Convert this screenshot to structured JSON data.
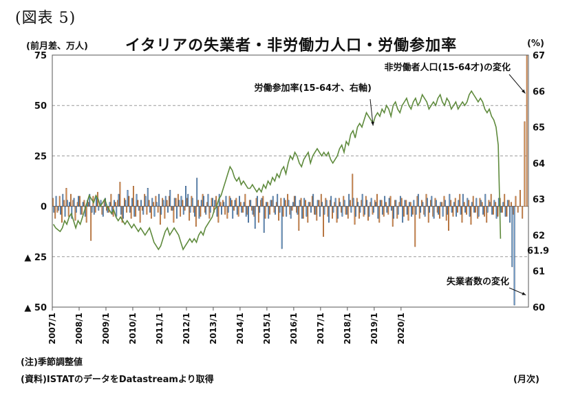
{
  "figure_label": "(図表 5)",
  "title": "イタリアの失業者・非労働力人口・労働参加率",
  "left_unit": "(前月差、万人)",
  "right_unit": "(%)",
  "x_unit": "(月次)",
  "note1": "(注)季節調整値",
  "note2": "(資料)ISTATのデータをDatastreamより取得",
  "chart_data": {
    "type": "bar+line",
    "x_start": "2007/1",
    "x_end": "2020/4",
    "x_ticks": [
      "2007/1",
      "2008/1",
      "2009/1",
      "2010/1",
      "2011/1",
      "2012/1",
      "2013/1",
      "2014/1",
      "2015/1",
      "2016/1",
      "2017/1",
      "2018/1",
      "2019/1",
      "2020/1"
    ],
    "y_left": {
      "min": -50,
      "max": 75,
      "ticks": [
        75,
        50,
        25,
        0,
        -25,
        -50
      ],
      "tick_labels": [
        "75",
        "50",
        "25",
        "0",
        "▲ 25",
        "▲ 50"
      ]
    },
    "y_right": {
      "min": 60,
      "max": 67,
      "ticks": [
        67,
        66,
        65,
        64,
        63,
        62,
        61,
        60
      ],
      "tick_labels": [
        "67",
        "66",
        "65",
        "64",
        "63",
        "62",
        "61",
        "60"
      ]
    },
    "grid": "horizontal dashed",
    "colors": {
      "inactive": "#e39a5c",
      "inactive_edge": "#8a4a1a",
      "unemployed": "#7aaede",
      "unemployed_edge": "#1f3f66",
      "participation": "#5e8a3c"
    },
    "series": [
      {
        "name": "非労働者人口(15-64才)の変化",
        "axis": "left",
        "kind": "bar",
        "values": [
          4,
          -6,
          -3,
          5,
          -8,
          3,
          9,
          -5,
          6,
          3,
          -7,
          2,
          5,
          -4,
          3,
          -8,
          2,
          -17,
          5,
          -3,
          7,
          1,
          -4,
          3,
          -2,
          -3,
          6,
          -5,
          2,
          3,
          12,
          -8,
          4,
          -3,
          5,
          -6,
          10,
          -5,
          3,
          -8,
          -2,
          6,
          -4,
          3,
          -6,
          2,
          5,
          -3,
          -9,
          4,
          -6,
          3,
          5,
          -2,
          -8,
          4,
          6,
          -5,
          3,
          -2,
          4,
          -7,
          5,
          -3,
          -10,
          3,
          -5,
          6,
          -3,
          2,
          -6,
          4,
          -3,
          5,
          -8,
          2,
          3,
          -4,
          -6,
          5,
          3,
          -2,
          4,
          -5,
          2,
          -3,
          6,
          -4,
          3,
          -2,
          -5,
          4,
          -8,
          3,
          5,
          -6,
          2,
          -4,
          3,
          -3,
          2,
          -7,
          4,
          -5,
          3,
          6,
          -4,
          -2,
          5,
          -3,
          -12,
          4,
          -6,
          3,
          -8,
          2,
          5,
          -4,
          -7,
          3,
          6,
          -15,
          4,
          -5,
          3,
          -6,
          2,
          -8,
          4,
          -3,
          5,
          -4,
          -6,
          3,
          16,
          -9,
          4,
          -6,
          3,
          -5,
          5,
          -7,
          2,
          -4,
          3,
          6,
          -8,
          3,
          -5,
          2,
          -4,
          5,
          -10,
          3,
          -6,
          2,
          4,
          -5,
          3,
          -7,
          2,
          -4,
          -20,
          5,
          -6,
          3,
          -4,
          6,
          -8,
          3,
          -5,
          4,
          -3,
          -6,
          2,
          5,
          -7,
          -12,
          3,
          -5,
          4,
          -3,
          6,
          -8,
          2,
          -4,
          3,
          -9,
          5,
          -3,
          -6,
          4,
          2,
          -5,
          -8,
          3,
          6,
          -4,
          2,
          -5,
          4,
          -3,
          6,
          -5,
          3,
          2,
          -4,
          5,
          -3,
          8,
          -6,
          42,
          75
        ]
      },
      {
        "name": "失業者数の変化",
        "axis": "left",
        "kind": "bar",
        "values": [
          -3,
          5,
          -2,
          -4,
          6,
          -5,
          3,
          2,
          -6,
          4,
          -3,
          5,
          -4,
          2,
          -5,
          3,
          6,
          -3,
          -4,
          5,
          -2,
          3,
          -5,
          4,
          -3,
          2,
          -4,
          3,
          -5,
          6,
          -4,
          -6,
          3,
          8,
          -3,
          4,
          -5,
          6,
          -2,
          3,
          -4,
          5,
          9,
          -3,
          4,
          -5,
          2,
          6,
          -4,
          3,
          5,
          -3,
          8,
          -2,
          4,
          -6,
          3,
          5,
          -4,
          10,
          6,
          -3,
          4,
          -5,
          14,
          -6,
          3,
          5,
          -4,
          6,
          -3,
          4,
          3,
          -5,
          6,
          -4,
          2,
          5,
          -3,
          4,
          -6,
          3,
          -4,
          5,
          -3,
          2,
          -5,
          -8,
          3,
          -4,
          -11,
          5,
          -3,
          4,
          -13,
          2,
          -6,
          3,
          5,
          -4,
          6,
          -3,
          -21,
          4,
          -5,
          3,
          -6,
          2,
          5,
          -4,
          3,
          -6,
          4,
          -5,
          2,
          -3,
          6,
          -4,
          3,
          -5,
          2,
          -4,
          3,
          -8,
          5,
          -3,
          4,
          -6,
          2,
          -5,
          3,
          -4,
          6,
          -3,
          4,
          -5,
          2,
          -3,
          6,
          -4,
          3,
          -5,
          4,
          -3,
          2,
          -6,
          3,
          -4,
          5,
          -3,
          4,
          -2,
          -6,
          3,
          -4,
          5,
          -8,
          3,
          -4,
          2,
          -5,
          3,
          -4,
          6,
          -3,
          2,
          -5,
          4,
          -3,
          5,
          -6,
          3,
          -4,
          2,
          -5,
          3,
          -4,
          6,
          -3,
          2,
          -5,
          3,
          -4,
          6,
          -3,
          4,
          -5,
          2,
          -3,
          4,
          -5,
          3,
          -4,
          6,
          -3,
          2,
          -4,
          3,
          -6,
          4,
          -3,
          2,
          -5,
          3,
          -8,
          -30,
          -49
        ]
      },
      {
        "name": "労働参加率(15-64才、右軸)",
        "axis": "right",
        "kind": "line",
        "values": [
          62.3,
          62.2,
          62.15,
          62.1,
          62.2,
          62.4,
          62.3,
          62.5,
          62.6,
          62.4,
          62.2,
          62.4,
          62.3,
          62.5,
          62.7,
          62.9,
          63.1,
          63.0,
          62.9,
          63.1,
          63.0,
          62.8,
          62.9,
          63.0,
          62.8,
          62.7,
          62.6,
          62.7,
          62.5,
          62.4,
          62.5,
          62.4,
          62.3,
          62.4,
          62.3,
          62.2,
          62.3,
          62.2,
          62.1,
          62.2,
          62.1,
          62.0,
          62.1,
          62.2,
          62.0,
          61.8,
          61.7,
          61.6,
          61.7,
          61.9,
          62.1,
          62.2,
          62.0,
          62.1,
          62.2,
          62.1,
          62.0,
          61.8,
          61.6,
          61.7,
          61.8,
          61.9,
          61.8,
          61.9,
          61.8,
          62.0,
          62.1,
          62.0,
          62.2,
          62.3,
          62.4,
          62.5,
          62.7,
          62.8,
          63.0,
          63.1,
          63.3,
          63.5,
          63.7,
          63.9,
          63.8,
          63.6,
          63.5,
          63.6,
          63.4,
          63.5,
          63.4,
          63.3,
          63.3,
          63.4,
          63.3,
          63.2,
          63.3,
          63.2,
          63.4,
          63.3,
          63.5,
          63.4,
          63.6,
          63.5,
          63.7,
          63.6,
          63.8,
          63.9,
          63.7,
          64.0,
          64.2,
          64.1,
          64.3,
          64.2,
          64.0,
          63.9,
          64.1,
          64.2,
          64.3,
          64.0,
          64.2,
          64.3,
          64.4,
          64.3,
          64.2,
          64.3,
          64.2,
          64.3,
          64.1,
          64.0,
          64.1,
          64.2,
          64.4,
          64.5,
          64.3,
          64.6,
          64.5,
          64.8,
          64.9,
          64.7,
          65.0,
          65.1,
          65.0,
          65.2,
          65.4,
          65.3,
          65.2,
          65.1,
          65.3,
          65.4,
          65.3,
          65.5,
          65.4,
          65.6,
          65.5,
          65.3,
          65.6,
          65.7,
          65.5,
          65.4,
          65.6,
          65.7,
          65.8,
          65.6,
          65.5,
          65.7,
          65.8,
          65.6,
          65.7,
          65.9,
          65.8,
          65.7,
          65.5,
          65.6,
          65.7,
          65.6,
          65.8,
          65.9,
          65.7,
          65.6,
          65.8,
          65.7,
          65.5,
          65.6,
          65.7,
          65.5,
          65.6,
          65.7,
          65.6,
          65.7,
          65.9,
          66.0,
          65.9,
          65.8,
          65.7,
          65.8,
          65.7,
          65.5,
          65.4,
          65.5,
          65.3,
          65.2,
          65.0,
          64.5,
          61.9
        ]
      }
    ],
    "annotations": [
      {
        "text": "非労働者人口(15-64才)の変化",
        "target": "非労働者人口(15-64才)の変化"
      },
      {
        "text": "労働参加率(15-64才、右軸)",
        "target": "労働参加率(15-64才、右軸)"
      },
      {
        "text": "失業者数の変化",
        "target": "失業者数の変化"
      },
      {
        "text": "61.9",
        "target": "労働参加率(15-64才、右軸)"
      }
    ]
  }
}
